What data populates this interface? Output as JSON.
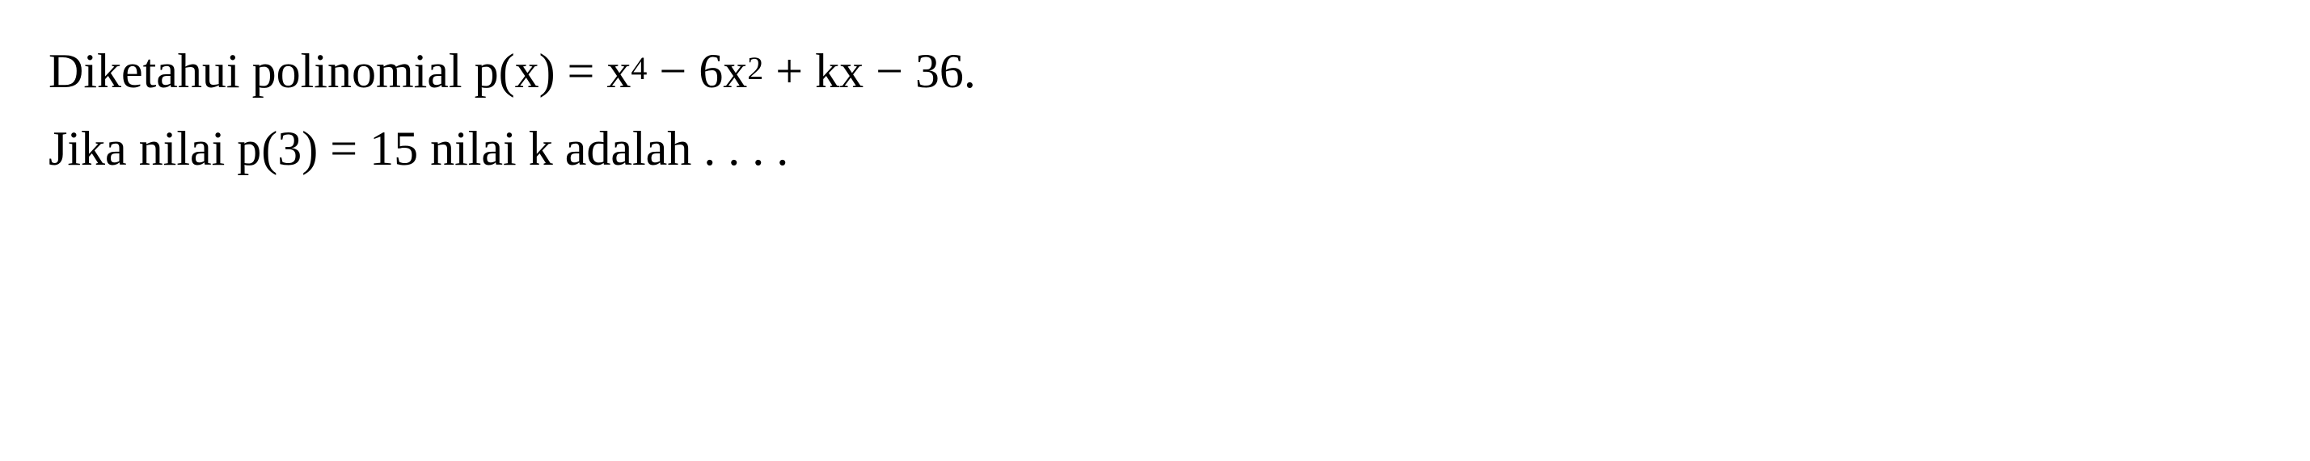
{
  "problem": {
    "line1": {
      "prefix": "Diketahui polinomial p(x) = x",
      "exp1": "4",
      "mid1": " − 6x",
      "exp2": "2",
      "suffix": " + kx − 36."
    },
    "line2": {
      "prefix": "Jika nilai p(3) = 15 nilai k adalah . . . ."
    }
  },
  "styling": {
    "background_color": "#ffffff",
    "text_color": "#000000",
    "font_family": "Times New Roman",
    "base_fontsize": 60,
    "superscript_fontsize": 40,
    "line_height": 1.6
  }
}
